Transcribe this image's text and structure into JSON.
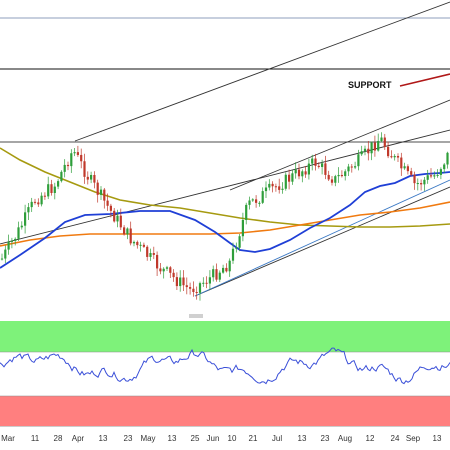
{
  "chart_data": [
    {
      "type": "candlestick",
      "panel": "price",
      "annotation": "SUPPORT",
      "colors": {
        "up": "#2e9e3a",
        "down": "#c0392b",
        "sma_fast": "#1f3fd6",
        "sma_mid": "#f07a10",
        "sma_slow": "#a69a10",
        "channel": "#333333",
        "trendline": "#3a78c4",
        "support_arrow": "#b01818",
        "hline": "#111111"
      }
    },
    {
      "type": "line",
      "panel": "oscillator",
      "bands": {
        "overbought_color": "#7ef27a",
        "oversold_color": "#ff7f7f"
      },
      "line_color": "#3a4fd8"
    }
  ],
  "x_axis": {
    "tick_labels": [
      "Mar",
      "11",
      "28",
      "Apr",
      "13",
      "23",
      "May",
      "13",
      "25",
      "Jun",
      "10",
      "21",
      "Jul",
      "13",
      "23",
      "Aug",
      "12",
      "24",
      "Sep",
      "13"
    ]
  }
}
